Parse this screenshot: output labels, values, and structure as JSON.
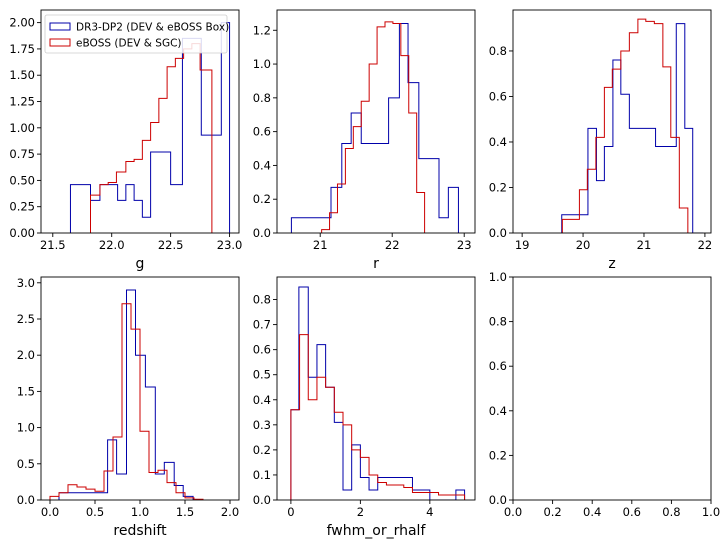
{
  "colors": {
    "series_1": "#0000aa",
    "series_2": "#cc0000",
    "axis": "#000000",
    "background": "#ffffff"
  },
  "chart_data": [
    {
      "type": "histogram-step",
      "xlabel": "g",
      "xlim": [
        21.4,
        23.08
      ],
      "ylim": [
        0,
        2.12
      ],
      "xticks": [
        21.5,
        22.0,
        22.5,
        23.0
      ],
      "xtick_labels": [
        "21.5",
        "22.0",
        "22.5",
        "23.0"
      ],
      "yticks": [
        0.0,
        0.25,
        0.5,
        0.75,
        1.0,
        1.25,
        1.5,
        1.75,
        2.0
      ],
      "ytick_labels": [
        "0.00",
        "0.25",
        "0.50",
        "0.75",
        "1.00",
        "1.25",
        "1.50",
        "1.75",
        "2.00"
      ],
      "legend": {
        "placement": "upper-left"
      },
      "series": [
        {
          "name": "DR3-DP2 (DEV & eBOSS Box)",
          "bin_edges": [
            21.65,
            21.82,
            21.9,
            21.98,
            22.05,
            22.12,
            22.19,
            22.26,
            22.33,
            22.4,
            22.5,
            22.6,
            22.68,
            22.76,
            22.85,
            22.93,
            23.0
          ],
          "counts": [
            0.46,
            0.31,
            0.46,
            0.46,
            0.31,
            0.46,
            0.31,
            0.15,
            0.77,
            0.77,
            0.46,
            1.85,
            1.85,
            0.93,
            0.93,
            2.0
          ]
        },
        {
          "name": "eBOSS (DEV & SGC)",
          "bin_edges": [
            21.82,
            21.9,
            21.97,
            22.04,
            22.12,
            22.19,
            22.26,
            22.33,
            22.4,
            22.47,
            22.54,
            22.61,
            22.68,
            22.75,
            22.85
          ],
          "counts": [
            0.36,
            0.46,
            0.48,
            0.58,
            0.68,
            0.7,
            0.88,
            1.05,
            1.28,
            1.58,
            1.66,
            1.75,
            1.8,
            1.55
          ]
        }
      ]
    },
    {
      "type": "histogram-step",
      "xlabel": "r",
      "xlim": [
        20.4,
        23.15
      ],
      "ylim": [
        0,
        1.32
      ],
      "xticks": [
        21,
        22,
        23
      ],
      "xtick_labels": [
        "21",
        "22",
        "23"
      ],
      "yticks": [
        0.0,
        0.2,
        0.4,
        0.6,
        0.8,
        1.0,
        1.2
      ],
      "ytick_labels": [
        "0.0",
        "0.2",
        "0.4",
        "0.6",
        "0.8",
        "1.0",
        "1.2"
      ],
      "series": [
        {
          "name": "DR3-DP2 (DEV & eBOSS Box)",
          "bin_edges": [
            20.6,
            20.95,
            21.15,
            21.3,
            21.43,
            21.57,
            21.95,
            22.1,
            22.22,
            22.37,
            22.65,
            22.78,
            22.92
          ],
          "counts": [
            0.09,
            0.09,
            0.27,
            0.53,
            0.71,
            0.53,
            0.8,
            1.24,
            0.89,
            0.44,
            0.09,
            0.27
          ]
        },
        {
          "name": "eBOSS (DEV & SGC)",
          "bin_edges": [
            21.02,
            21.13,
            21.24,
            21.35,
            21.46,
            21.57,
            21.68,
            21.79,
            21.9,
            22.01,
            22.12,
            22.23,
            22.34,
            22.45
          ],
          "counts": [
            0.02,
            0.12,
            0.29,
            0.5,
            0.63,
            0.78,
            1.0,
            1.22,
            1.25,
            1.24,
            1.05,
            0.71,
            0.24
          ]
        }
      ]
    },
    {
      "type": "histogram-step",
      "xlabel": "z",
      "xlim": [
        18.85,
        22.1
      ],
      "ylim": [
        0,
        0.98
      ],
      "xticks": [
        19,
        20,
        21,
        22
      ],
      "xtick_labels": [
        "19",
        "20",
        "21",
        "22"
      ],
      "yticks": [
        0.0,
        0.2,
        0.4,
        0.6,
        0.8
      ],
      "ytick_labels": [
        "0.0",
        "0.2",
        "0.4",
        "0.6",
        "0.8"
      ],
      "series": [
        {
          "name": "DR3-DP2 (DEV & eBOSS Box)",
          "bin_edges": [
            19.65,
            19.95,
            20.08,
            20.22,
            20.35,
            20.49,
            20.62,
            20.76,
            21.05,
            21.19,
            21.53,
            21.67,
            21.8,
            21.97
          ],
          "counts": [
            0.08,
            0.08,
            0.46,
            0.23,
            0.38,
            0.76,
            0.61,
            0.46,
            0.46,
            0.38,
            0.92,
            0.46,
            0.0
          ]
        },
        {
          "name": "eBOSS (DEV & SGC)",
          "bin_edges": [
            19.66,
            19.8,
            19.94,
            20.07,
            20.21,
            20.35,
            20.48,
            20.62,
            20.76,
            20.9,
            21.03,
            21.17,
            21.31,
            21.44,
            21.58,
            21.72
          ],
          "counts": [
            0.06,
            0.06,
            0.19,
            0.28,
            0.42,
            0.64,
            0.72,
            0.8,
            0.88,
            0.94,
            0.93,
            0.92,
            0.73,
            0.42,
            0.11
          ]
        }
      ]
    },
    {
      "type": "histogram-step",
      "xlabel": "redshift",
      "xlim": [
        -0.1,
        2.1
      ],
      "ylim": [
        0,
        3.08
      ],
      "xticks": [
        0.0,
        0.5,
        1.0,
        1.5,
        2.0
      ],
      "xtick_labels": [
        "0.0",
        "0.5",
        "1.0",
        "1.5",
        "2.0"
      ],
      "yticks": [
        0.0,
        0.5,
        1.0,
        1.5,
        2.0,
        2.5,
        3.0
      ],
      "ytick_labels": [
        "0.0",
        "0.5",
        "1.0",
        "1.5",
        "2.0",
        "2.5",
        "3.0"
      ],
      "series": [
        {
          "name": "DR3-DP2 (DEV & eBOSS Box)",
          "bin_edges": [
            0.1,
            0.53,
            0.64,
            0.74,
            0.85,
            0.95,
            1.06,
            1.17,
            1.27,
            1.38,
            1.48,
            1.59
          ],
          "counts": [
            0.1,
            0.1,
            0.83,
            0.36,
            2.9,
            2.0,
            1.56,
            0.36,
            0.52,
            0.2,
            0.05
          ]
        },
        {
          "name": "eBOSS (DEV & SGC)",
          "bin_edges": [
            0.0,
            0.1,
            0.2,
            0.3,
            0.4,
            0.5,
            0.6,
            0.7,
            0.8,
            0.9,
            1.0,
            1.1,
            1.2,
            1.3,
            1.4,
            1.5,
            1.6,
            1.7
          ],
          "counts": [
            0.05,
            0.1,
            0.21,
            0.18,
            0.15,
            0.12,
            0.4,
            0.87,
            2.71,
            2.36,
            0.95,
            0.38,
            0.41,
            0.24,
            0.1,
            0.03,
            0.01
          ]
        }
      ]
    },
    {
      "type": "histogram-step",
      "xlabel": "fwhm_or_rhalf",
      "xlim": [
        -0.4,
        5.3
      ],
      "ylim": [
        0,
        0.89
      ],
      "xticks": [
        0,
        2,
        4
      ],
      "xtick_labels": [
        "0",
        "2",
        "4"
      ],
      "yticks": [
        0.0,
        0.1,
        0.2,
        0.3,
        0.4,
        0.5,
        0.6,
        0.7,
        0.8
      ],
      "ytick_labels": [
        "0.0",
        "0.1",
        "0.2",
        "0.3",
        "0.4",
        "0.5",
        "0.6",
        "0.7",
        "0.8"
      ],
      "series": [
        {
          "name": "DR3-DP2 (DEV & eBOSS Box)",
          "bin_edges": [
            0.0,
            0.23,
            0.5,
            0.75,
            1.0,
            1.25,
            1.5,
            1.75,
            2.0,
            2.25,
            2.5,
            3.5,
            3.75,
            4.0,
            4.5,
            4.75,
            5.0
          ],
          "counts": [
            0.36,
            0.85,
            0.49,
            0.62,
            0.45,
            0.31,
            0.04,
            0.22,
            0.09,
            0.04,
            0.09,
            0.04,
            0.04,
            0.0,
            0.0,
            0.04
          ]
        },
        {
          "name": "eBOSS (DEV & SGC)",
          "bin_edges": [
            0.0,
            0.25,
            0.5,
            0.75,
            1.0,
            1.25,
            1.5,
            1.75,
            2.0,
            2.25,
            2.5,
            2.75,
            3.0,
            3.25,
            3.5,
            3.75,
            4.0,
            4.25,
            4.5,
            4.75,
            5.0
          ],
          "counts": [
            0.36,
            0.66,
            0.4,
            0.49,
            0.45,
            0.35,
            0.3,
            0.2,
            0.17,
            0.1,
            0.07,
            0.06,
            0.06,
            0.05,
            0.03,
            0.03,
            0.03,
            0.02,
            0.02,
            0.02
          ]
        }
      ]
    },
    {
      "type": "empty",
      "xlim": [
        0,
        1
      ],
      "ylim": [
        0,
        1
      ],
      "xticks": [
        0.0,
        0.2,
        0.4,
        0.6,
        0.8,
        1.0
      ],
      "xtick_labels": [
        "0.0",
        "0.2",
        "0.4",
        "0.6",
        "0.8",
        "1.0"
      ],
      "yticks": [
        0.0,
        0.2,
        0.4,
        0.6,
        0.8,
        1.0
      ],
      "ytick_labels": [
        "0.0",
        "0.2",
        "0.4",
        "0.6",
        "0.8",
        "1.0"
      ],
      "series": []
    }
  ]
}
